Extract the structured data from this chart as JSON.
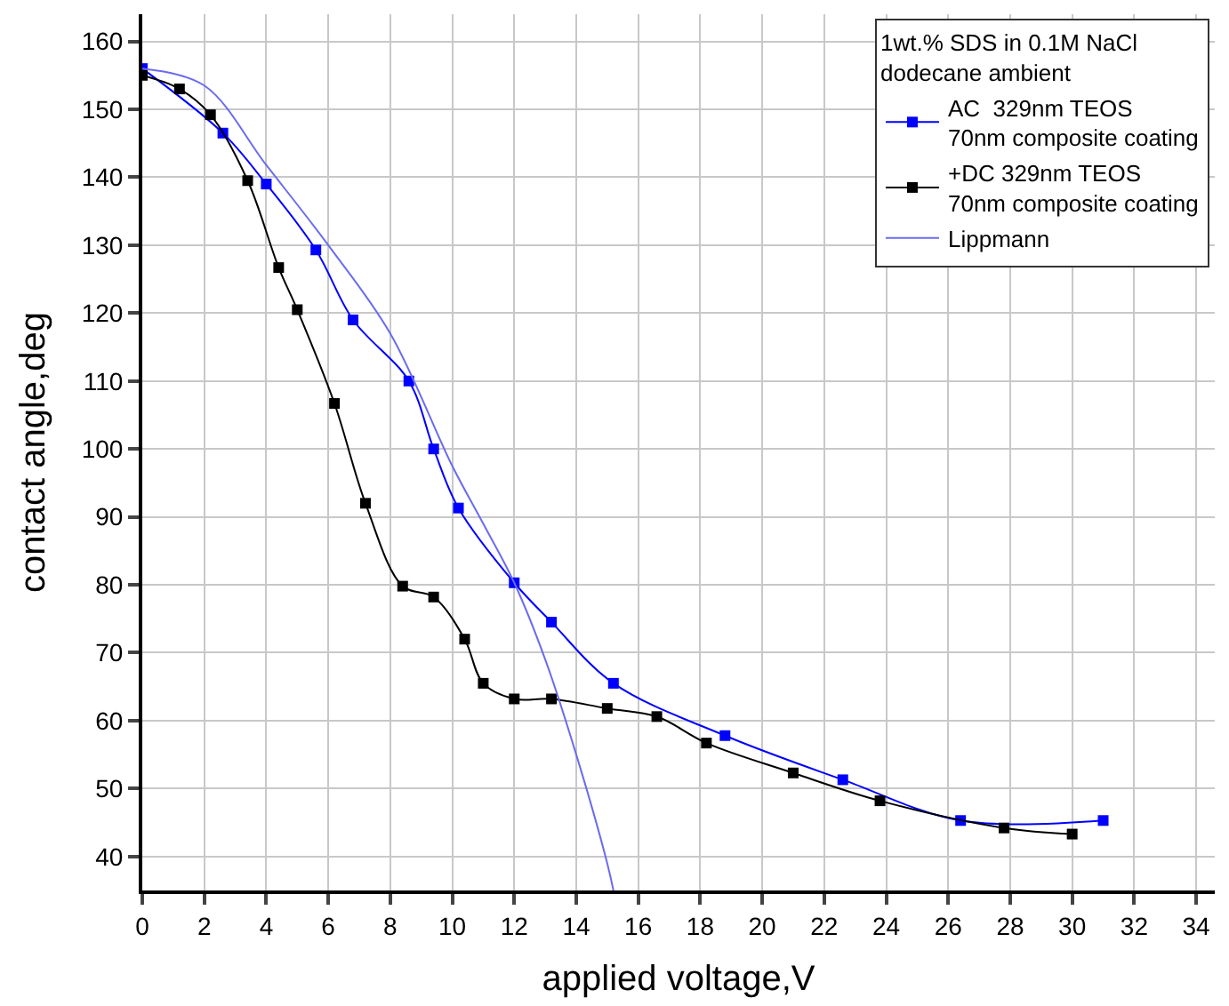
{
  "chart_data": {
    "type": "line",
    "xlabel": "applied voltage,V",
    "ylabel": "contact angle,deg",
    "legend_title": "1wt.% SDS in 0.1M NaCl\ndodecane ambient",
    "series": [
      {
        "name": "AC  329nm TEOS\n70nm composite coating",
        "color": "#0000ff",
        "marker": "square",
        "x": [
          0,
          2.6,
          4,
          5.6,
          6.8,
          8.6,
          9.4,
          10.2,
          12,
          13.2,
          15.2,
          18.8,
          22.6,
          26.4,
          31
        ],
        "values": [
          156,
          146.5,
          139,
          129.3,
          119,
          110,
          100,
          91.3,
          80.3,
          74.5,
          65.5,
          57.8,
          51.3,
          45.3,
          45.3
        ]
      },
      {
        "name": "+DC 329nm TEOS\n70nm composite coating",
        "color": "#000000",
        "marker": "square",
        "x": [
          0,
          1.2,
          2.2,
          3.4,
          4.4,
          5,
          6.2,
          7.2,
          8.4,
          9.4,
          10.4,
          11,
          12,
          13.2,
          15,
          16.6,
          18.2,
          21,
          23.8,
          27.8,
          30
        ],
        "values": [
          155,
          153,
          149.2,
          139.5,
          126.7,
          120.5,
          106.7,
          92,
          79.8,
          78.2,
          72,
          65.5,
          63.2,
          63.2,
          61.8,
          60.6,
          56.7,
          52.3,
          48.2,
          44.2,
          43.3
        ]
      },
      {
        "name": "Lippmann",
        "color": "#6b6bf0",
        "marker": "none",
        "x": [
          0,
          2,
          4,
          6,
          8,
          10,
          11,
          12,
          13,
          14,
          15,
          15.2
        ],
        "values": [
          156,
          153.5,
          141.8,
          130,
          117,
          97.5,
          89,
          80.3,
          69,
          55,
          39,
          35
        ]
      }
    ],
    "xlim": [
      0,
      34.6
    ],
    "xticks": [
      0,
      2,
      4,
      6,
      8,
      10,
      12,
      14,
      16,
      18,
      20,
      22,
      24,
      26,
      28,
      30,
      32,
      34
    ],
    "ylim": [
      35,
      164
    ],
    "yticks": [
      40,
      50,
      60,
      70,
      80,
      90,
      100,
      110,
      120,
      130,
      140,
      150,
      160
    ],
    "grid": true,
    "legend": "top right"
  }
}
